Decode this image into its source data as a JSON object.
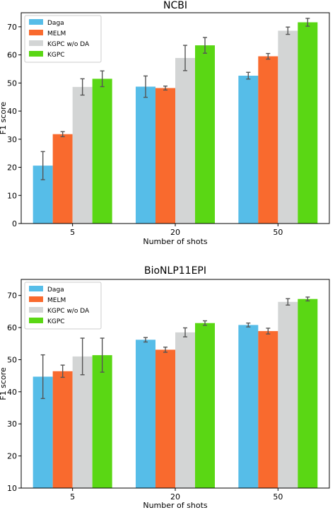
{
  "chart_data": [
    {
      "type": "bar",
      "title": "NCBI",
      "xlabel": "Number of shots",
      "ylabel": "F1 score",
      "categories": [
        "5",
        "20",
        "50"
      ],
      "ylim": [
        0,
        75
      ],
      "yticks": [
        0,
        10,
        20,
        30,
        40,
        50,
        60,
        70
      ],
      "legend_position": "top-left",
      "grid": false,
      "series": [
        {
          "name": "Daga",
          "color": "#56BDE8",
          "values": [
            20.6,
            48.7,
            52.6
          ],
          "errors": [
            5.0,
            3.8,
            1.2
          ]
        },
        {
          "name": "MELM",
          "color": "#F96A2E",
          "values": [
            31.8,
            48.2,
            59.5
          ],
          "errors": [
            0.9,
            0.7,
            1.0
          ]
        },
        {
          "name": "KGPC w/o DA",
          "color": "#D3D5D5",
          "values": [
            48.6,
            58.9,
            68.6
          ],
          "errors": [
            2.9,
            4.5,
            1.3
          ]
        },
        {
          "name": "KGPC",
          "color": "#5AD714",
          "values": [
            51.5,
            63.4,
            71.6
          ],
          "errors": [
            2.8,
            2.8,
            1.4
          ]
        }
      ]
    },
    {
      "type": "bar",
      "title": "BioNLP11EPI",
      "xlabel": "Number of shots",
      "ylabel": "F1 score",
      "categories": [
        "5",
        "20",
        "50"
      ],
      "ylim": [
        10,
        75
      ],
      "yticks": [
        10,
        20,
        30,
        40,
        50,
        60,
        70
      ],
      "legend_position": "top-left",
      "grid": false,
      "series": [
        {
          "name": "Daga",
          "color": "#56BDE8",
          "values": [
            44.7,
            56.2,
            60.8
          ],
          "errors": [
            6.8,
            0.7,
            0.6
          ]
        },
        {
          "name": "MELM",
          "color": "#F96A2E",
          "values": [
            46.4,
            53.1,
            58.9
          ],
          "errors": [
            1.9,
            0.8,
            0.9
          ]
        },
        {
          "name": "KGPC w/o DA",
          "color": "#D3D5D5",
          "values": [
            51.0,
            58.5,
            68.0
          ],
          "errors": [
            5.7,
            1.4,
            1.0
          ]
        },
        {
          "name": "KGPC",
          "color": "#5AD714",
          "values": [
            51.4,
            61.4,
            68.9
          ],
          "errors": [
            5.3,
            0.7,
            0.6
          ]
        }
      ]
    }
  ]
}
